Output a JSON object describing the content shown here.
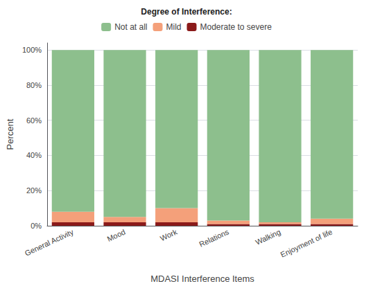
{
  "chart_data": {
    "type": "bar",
    "legend_title": "Degree of Interference:",
    "xlabel": "MDASI Interference Items",
    "ylabel": "Percent",
    "categories": [
      "General Activity",
      "Mood",
      "Work",
      "Relations",
      "Walking",
      "Enjoyment of life"
    ],
    "series": [
      {
        "name": "Not at all",
        "color": "#8DBF8D",
        "values": [
          92,
          95,
          90,
          97,
          98,
          96
        ]
      },
      {
        "name": "Mild",
        "color": "#F4A07A",
        "values": [
          6,
          3,
          8,
          2,
          1,
          3
        ]
      },
      {
        "name": "Moderate to severe",
        "color": "#8B1A1A",
        "values": [
          2,
          2,
          2,
          1,
          1,
          1
        ]
      }
    ],
    "stacked": true,
    "ylim": [
      0,
      104
    ],
    "yticks": [
      {
        "value": 0,
        "label": "0%"
      },
      {
        "value": 20,
        "label": "20%"
      },
      {
        "value": 40,
        "label": "40%"
      },
      {
        "value": 60,
        "label": "60%"
      },
      {
        "value": 80,
        "label": "80%"
      },
      {
        "value": 100,
        "label": "100%"
      }
    ],
    "grid": true,
    "legend": "top"
  }
}
